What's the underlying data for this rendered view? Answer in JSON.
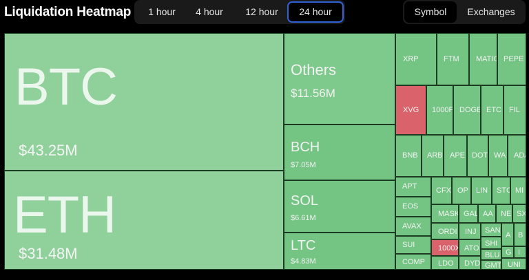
{
  "header": {
    "title": "Liquidation Heatmap",
    "time_options": [
      "1 hour",
      "4 hour",
      "12 hour",
      "24 hour"
    ],
    "selected_time": "24 hour",
    "mode_options": [
      "Symbol",
      "Exchanges"
    ],
    "selected_mode": "Symbol"
  },
  "colors": {
    "long": "#74c584",
    "short": "#d9626b",
    "accent": "#2f63d6",
    "background": "#000000"
  },
  "tiles": {
    "btc": {
      "symbol": "BTC",
      "value": "$43.25M"
    },
    "eth": {
      "symbol": "ETH",
      "value": "$31.48M"
    },
    "others": {
      "symbol": "Others",
      "value": "$11.56M"
    },
    "bch": {
      "symbol": "BCH",
      "value": "$7.05M"
    },
    "sol": {
      "symbol": "SOL",
      "value": "$6.61M"
    },
    "ltc": {
      "symbol": "LTC",
      "value": "$4.83M"
    },
    "xrp": "XRP",
    "ftm": "FTM",
    "matic": "MATIC",
    "pepe": "PEPE",
    "xvg": "XVG",
    "k1000": "1000F",
    "doge": "DOGE",
    "etc": "ETC",
    "fil": "FIL",
    "bnb": "BNB",
    "arb": "ARB",
    "ape": "APE",
    "dot": "DOT",
    "wa": "WA",
    "ada": "ADA",
    "apt": "APT",
    "cfx": "CFX",
    "op": "OP",
    "lin": "LIN",
    "sto": "STC",
    "mi": "MI",
    "eos": "EOS",
    "mask": "MASK",
    "gal": "GAL",
    "aa": "AA",
    "ne": "NE",
    "sx": "SX",
    "avax": "AVAX",
    "ordi": "ORDI",
    "inj": "INJ",
    "san": "SAN",
    "bl2": "B",
    "a2": "A",
    "sui": "SUI",
    "k1000x": "1000X",
    "ato": "ATO",
    "shi": "SHI",
    "g": "G",
    "i": "I",
    "comp": "COMP",
    "ldo": "LDO",
    "dyd": "DYD",
    "blu": "BLU",
    "gmt": "GMT",
    "uni": "UNI"
  }
}
